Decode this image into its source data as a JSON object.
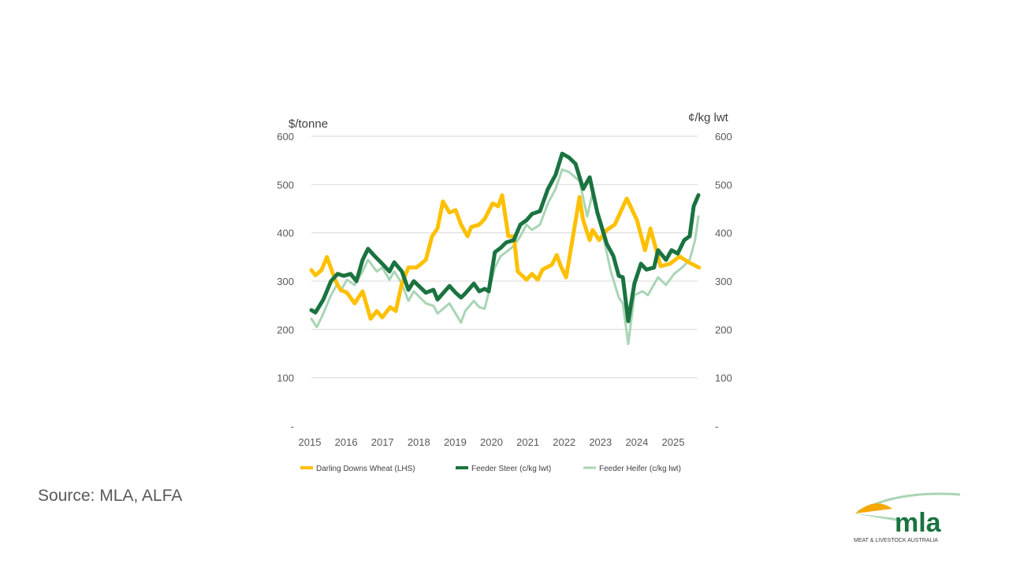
{
  "source": "Source: MLA, ALFA",
  "logo": {
    "wordmark": "mla",
    "tagline": "MEAT & LIVESTOCK AUSTRALIA"
  },
  "chart_data": {
    "type": "line",
    "ylabel_left": "$/tonne",
    "ylabel_right": "¢/kg lwt",
    "ylim": [
      0,
      600
    ],
    "xlim": [
      2015,
      2025.7
    ],
    "y_ticks_left": [
      "-",
      "100",
      "200",
      "300",
      "400",
      "500",
      "600"
    ],
    "y_ticks_right": [
      "-",
      "100",
      "200",
      "300",
      "400",
      "500",
      "600"
    ],
    "x_ticks": [
      "2015",
      "2016",
      "2017",
      "2018",
      "2019",
      "2020",
      "2021",
      "2022",
      "2023",
      "2024",
      "2025"
    ],
    "grid": true,
    "legend_position": "bottom",
    "series": [
      {
        "name": "Darling Downs Wheat (LHS)",
        "color": "#FFC000",
        "axis": "left",
        "x": [
          2015.0,
          2015.11,
          2015.28,
          2015.43,
          2015.65,
          2015.8,
          2015.98,
          2016.19,
          2016.41,
          2016.63,
          2016.8,
          2016.95,
          2017.17,
          2017.32,
          2017.49,
          2017.67,
          2017.89,
          2018.15,
          2018.32,
          2018.47,
          2018.62,
          2018.8,
          2018.97,
          2019.12,
          2019.3,
          2019.4,
          2019.62,
          2019.77,
          2019.99,
          2020.14,
          2020.25,
          2020.42,
          2020.57,
          2020.68,
          2020.92,
          2021.07,
          2021.23,
          2021.36,
          2021.62,
          2021.75,
          2021.88,
          2022.01,
          2022.2,
          2022.38,
          2022.48,
          2022.66,
          2022.74,
          2022.92,
          2023.13,
          2023.35,
          2023.68,
          2023.96,
          2024.18,
          2024.33,
          2024.61,
          2024.87,
          2025.13,
          2025.41,
          2025.67
        ],
        "y": [
          323,
          312,
          323,
          350,
          303,
          282,
          276,
          254,
          279,
          222,
          238,
          225,
          246,
          238,
          295,
          328,
          328,
          344,
          393,
          409,
          465,
          442,
          447,
          417,
          393,
          412,
          417,
          429,
          461,
          455,
          478,
          393,
          393,
          320,
          303,
          315,
          303,
          324,
          334,
          354,
          328,
          308,
          393,
          474,
          426,
          385,
          406,
          385,
          406,
          417,
          471,
          426,
          364,
          409,
          331,
          336,
          351,
          338,
          328
        ]
      },
      {
        "name": "Feeder Steer (c/kg lwt)",
        "color": "#1A7340",
        "axis": "right",
        "x": [
          2015.0,
          2015.11,
          2015.33,
          2015.54,
          2015.72,
          2015.89,
          2016.08,
          2016.24,
          2016.41,
          2016.56,
          2016.74,
          2016.95,
          2017.15,
          2017.28,
          2017.49,
          2017.67,
          2017.82,
          2018.15,
          2018.36,
          2018.47,
          2018.8,
          2018.97,
          2019.12,
          2019.23,
          2019.47,
          2019.62,
          2019.77,
          2019.88,
          2020.05,
          2020.21,
          2020.36,
          2020.57,
          2020.75,
          2020.92,
          2021.07,
          2021.29,
          2021.51,
          2021.72,
          2021.9,
          2022.09,
          2022.27,
          2022.48,
          2022.66,
          2022.87,
          2023.13,
          2023.31,
          2023.46,
          2023.57,
          2023.72,
          2023.89,
          2024.07,
          2024.22,
          2024.43,
          2024.54,
          2024.76,
          2024.91,
          2025.08,
          2025.26,
          2025.41,
          2025.52,
          2025.65
        ],
        "y": [
          240,
          235,
          262,
          300,
          315,
          311,
          315,
          300,
          344,
          367,
          352,
          336,
          320,
          339,
          320,
          282,
          300,
          276,
          282,
          262,
          290,
          276,
          266,
          274,
          295,
          279,
          284,
          279,
          360,
          369,
          380,
          385,
          417,
          426,
          439,
          445,
          491,
          520,
          564,
          556,
          543,
          491,
          515,
          442,
          377,
          352,
          311,
          308,
          217,
          295,
          336,
          324,
          328,
          364,
          344,
          364,
          357,
          385,
          393,
          455,
          478
        ]
      },
      {
        "name": "Feeder Heifer (c/kg lwt)",
        "color": "#A9D5B5",
        "axis": "right",
        "x": [
          2015.0,
          2015.15,
          2015.33,
          2015.54,
          2015.72,
          2015.8,
          2015.98,
          2016.19,
          2016.41,
          2016.56,
          2016.8,
          2016.95,
          2017.15,
          2017.28,
          2017.49,
          2017.67,
          2017.82,
          2018.15,
          2018.36,
          2018.47,
          2018.8,
          2019.12,
          2019.23,
          2019.47,
          2019.62,
          2019.77,
          2020.05,
          2020.21,
          2020.36,
          2020.57,
          2020.75,
          2020.92,
          2021.07,
          2021.29,
          2021.51,
          2021.72,
          2021.9,
          2022.09,
          2022.38,
          2022.59,
          2022.74,
          2023.03,
          2023.24,
          2023.46,
          2023.57,
          2023.72,
          2023.89,
          2024.11,
          2024.26,
          2024.54,
          2024.76,
          2024.98,
          2025.2,
          2025.41,
          2025.56,
          2025.65
        ],
        "y": [
          222,
          205,
          233,
          271,
          295,
          279,
          303,
          292,
          320,
          344,
          320,
          328,
          303,
          320,
          295,
          259,
          279,
          254,
          249,
          233,
          254,
          214,
          238,
          259,
          246,
          243,
          328,
          352,
          360,
          373,
          393,
          417,
          406,
          417,
          461,
          491,
          531,
          526,
          507,
          434,
          483,
          393,
          320,
          266,
          254,
          170,
          271,
          279,
          271,
          308,
          292,
          315,
          328,
          344,
          385,
          434
        ]
      }
    ]
  }
}
